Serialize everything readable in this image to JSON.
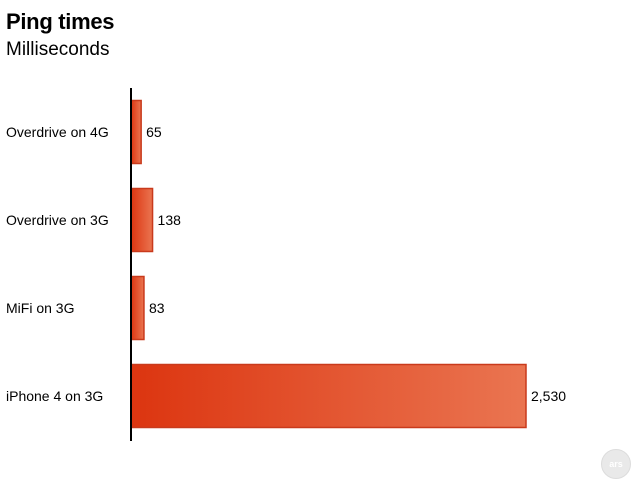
{
  "chart_data": {
    "type": "bar",
    "orientation": "horizontal",
    "title": "Ping times",
    "subtitle": "Milliseconds",
    "categories": [
      "Overdrive on 4G",
      "Overdrive on 3G",
      "MiFi on 3G",
      "iPhone 4 on 3G"
    ],
    "values": [
      65,
      138,
      83,
      2530
    ],
    "value_labels": [
      "65",
      "138",
      "83",
      "2,530"
    ],
    "xlim": [
      0,
      2530
    ],
    "grid": false,
    "legend": "none",
    "colors": {
      "bar_start": "#dc3510",
      "bar_end": "#ea7551",
      "bar_stroke": "#c93a1c",
      "axis": "#000000"
    }
  },
  "logo": {
    "text": "ars",
    "icon": "ars-logo-icon"
  }
}
